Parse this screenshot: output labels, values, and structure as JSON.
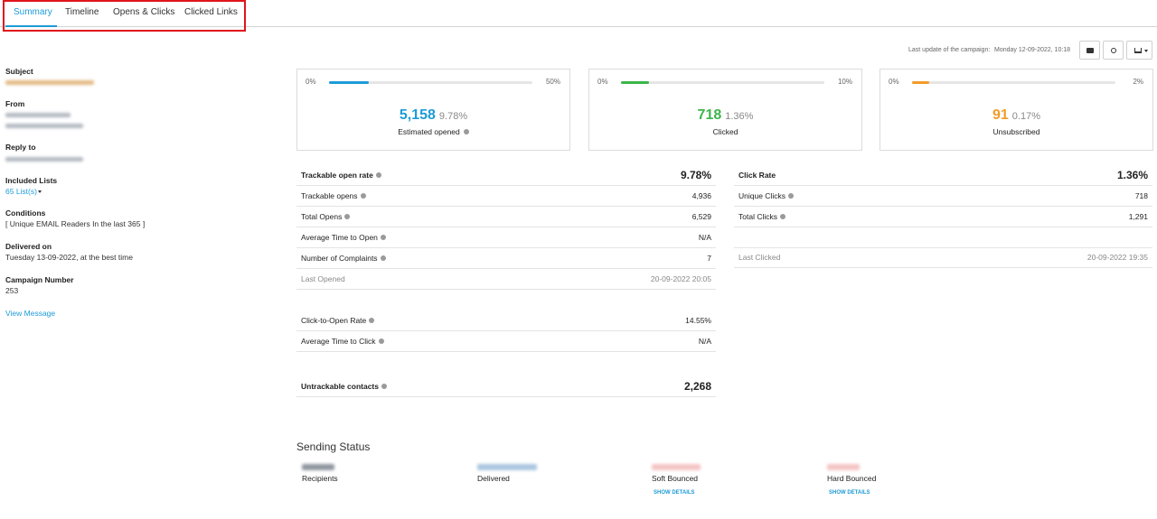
{
  "tabs": [
    "Summary",
    "Timeline",
    "Opens & Clicks",
    "Clicked Links"
  ],
  "last_update": {
    "label": "Last update of the campaign:",
    "value": "Monday 12-09-2022, 10:18"
  },
  "sidebar": [
    {
      "label": "Subject"
    },
    {
      "label": "From"
    },
    {
      "label": "Reply to"
    },
    {
      "label": "Included Lists",
      "value": "65 List(s)"
    },
    {
      "label": "Conditions",
      "value": "[ Unique EMAIL Readers In the last 365 ]"
    },
    {
      "label": "Delivered on",
      "value": "Tuesday 13-09-2022, at the best time"
    },
    {
      "label": "Campaign Number",
      "value": "253"
    }
  ],
  "view_message": "View Message",
  "cards": [
    {
      "min": "0%",
      "max": "50%",
      "count": "5,158",
      "rate": "9.78%",
      "label": "Estimated opened",
      "color": "#1e9bd7"
    },
    {
      "min": "0%",
      "max": "10%",
      "count": "718",
      "rate": "1.36%",
      "label": "Clicked",
      "color": "#3db54a"
    },
    {
      "min": "0%",
      "max": "2%",
      "count": "91",
      "rate": "0.17%",
      "label": "Unsubscribed",
      "color": "#f29c2b"
    }
  ],
  "opens_table": {
    "rows": [
      {
        "label": "Trackable open rate",
        "value": "9.78%"
      },
      {
        "label": "Trackable opens",
        "value": "4,936"
      },
      {
        "label": "Total Opens",
        "value": "6,529"
      },
      {
        "label": "Average Time to Open",
        "value": "N/A"
      },
      {
        "label": "Number of Complaints",
        "value": "7"
      },
      {
        "label": "Last Opened",
        "value": "20-09-2022 20:05"
      },
      {
        "label": "Click-to-Open Rate",
        "value": "14.55%"
      },
      {
        "label": "Average Time to Click",
        "value": "N/A"
      },
      {
        "label": "Untrackable contacts",
        "value": "2,268"
      }
    ]
  },
  "clicks_table": {
    "rows": [
      {
        "label": "Click Rate",
        "value": "1.36%"
      },
      {
        "label": "Unique Clicks",
        "value": "718"
      },
      {
        "label": "Total Clicks",
        "value": "1,291"
      },
      {
        "label": "Last Clicked",
        "value": "20-09-2022 19:35"
      }
    ]
  },
  "sending_status": {
    "title": "Sending Status",
    "items": [
      {
        "label": "Recipients"
      },
      {
        "label": "Delivered"
      },
      {
        "label": "Soft Bounced",
        "action": "SHOW DETAILS"
      },
      {
        "label": "Hard Bounced",
        "action": "SHOW DETAILS"
      }
    ]
  }
}
